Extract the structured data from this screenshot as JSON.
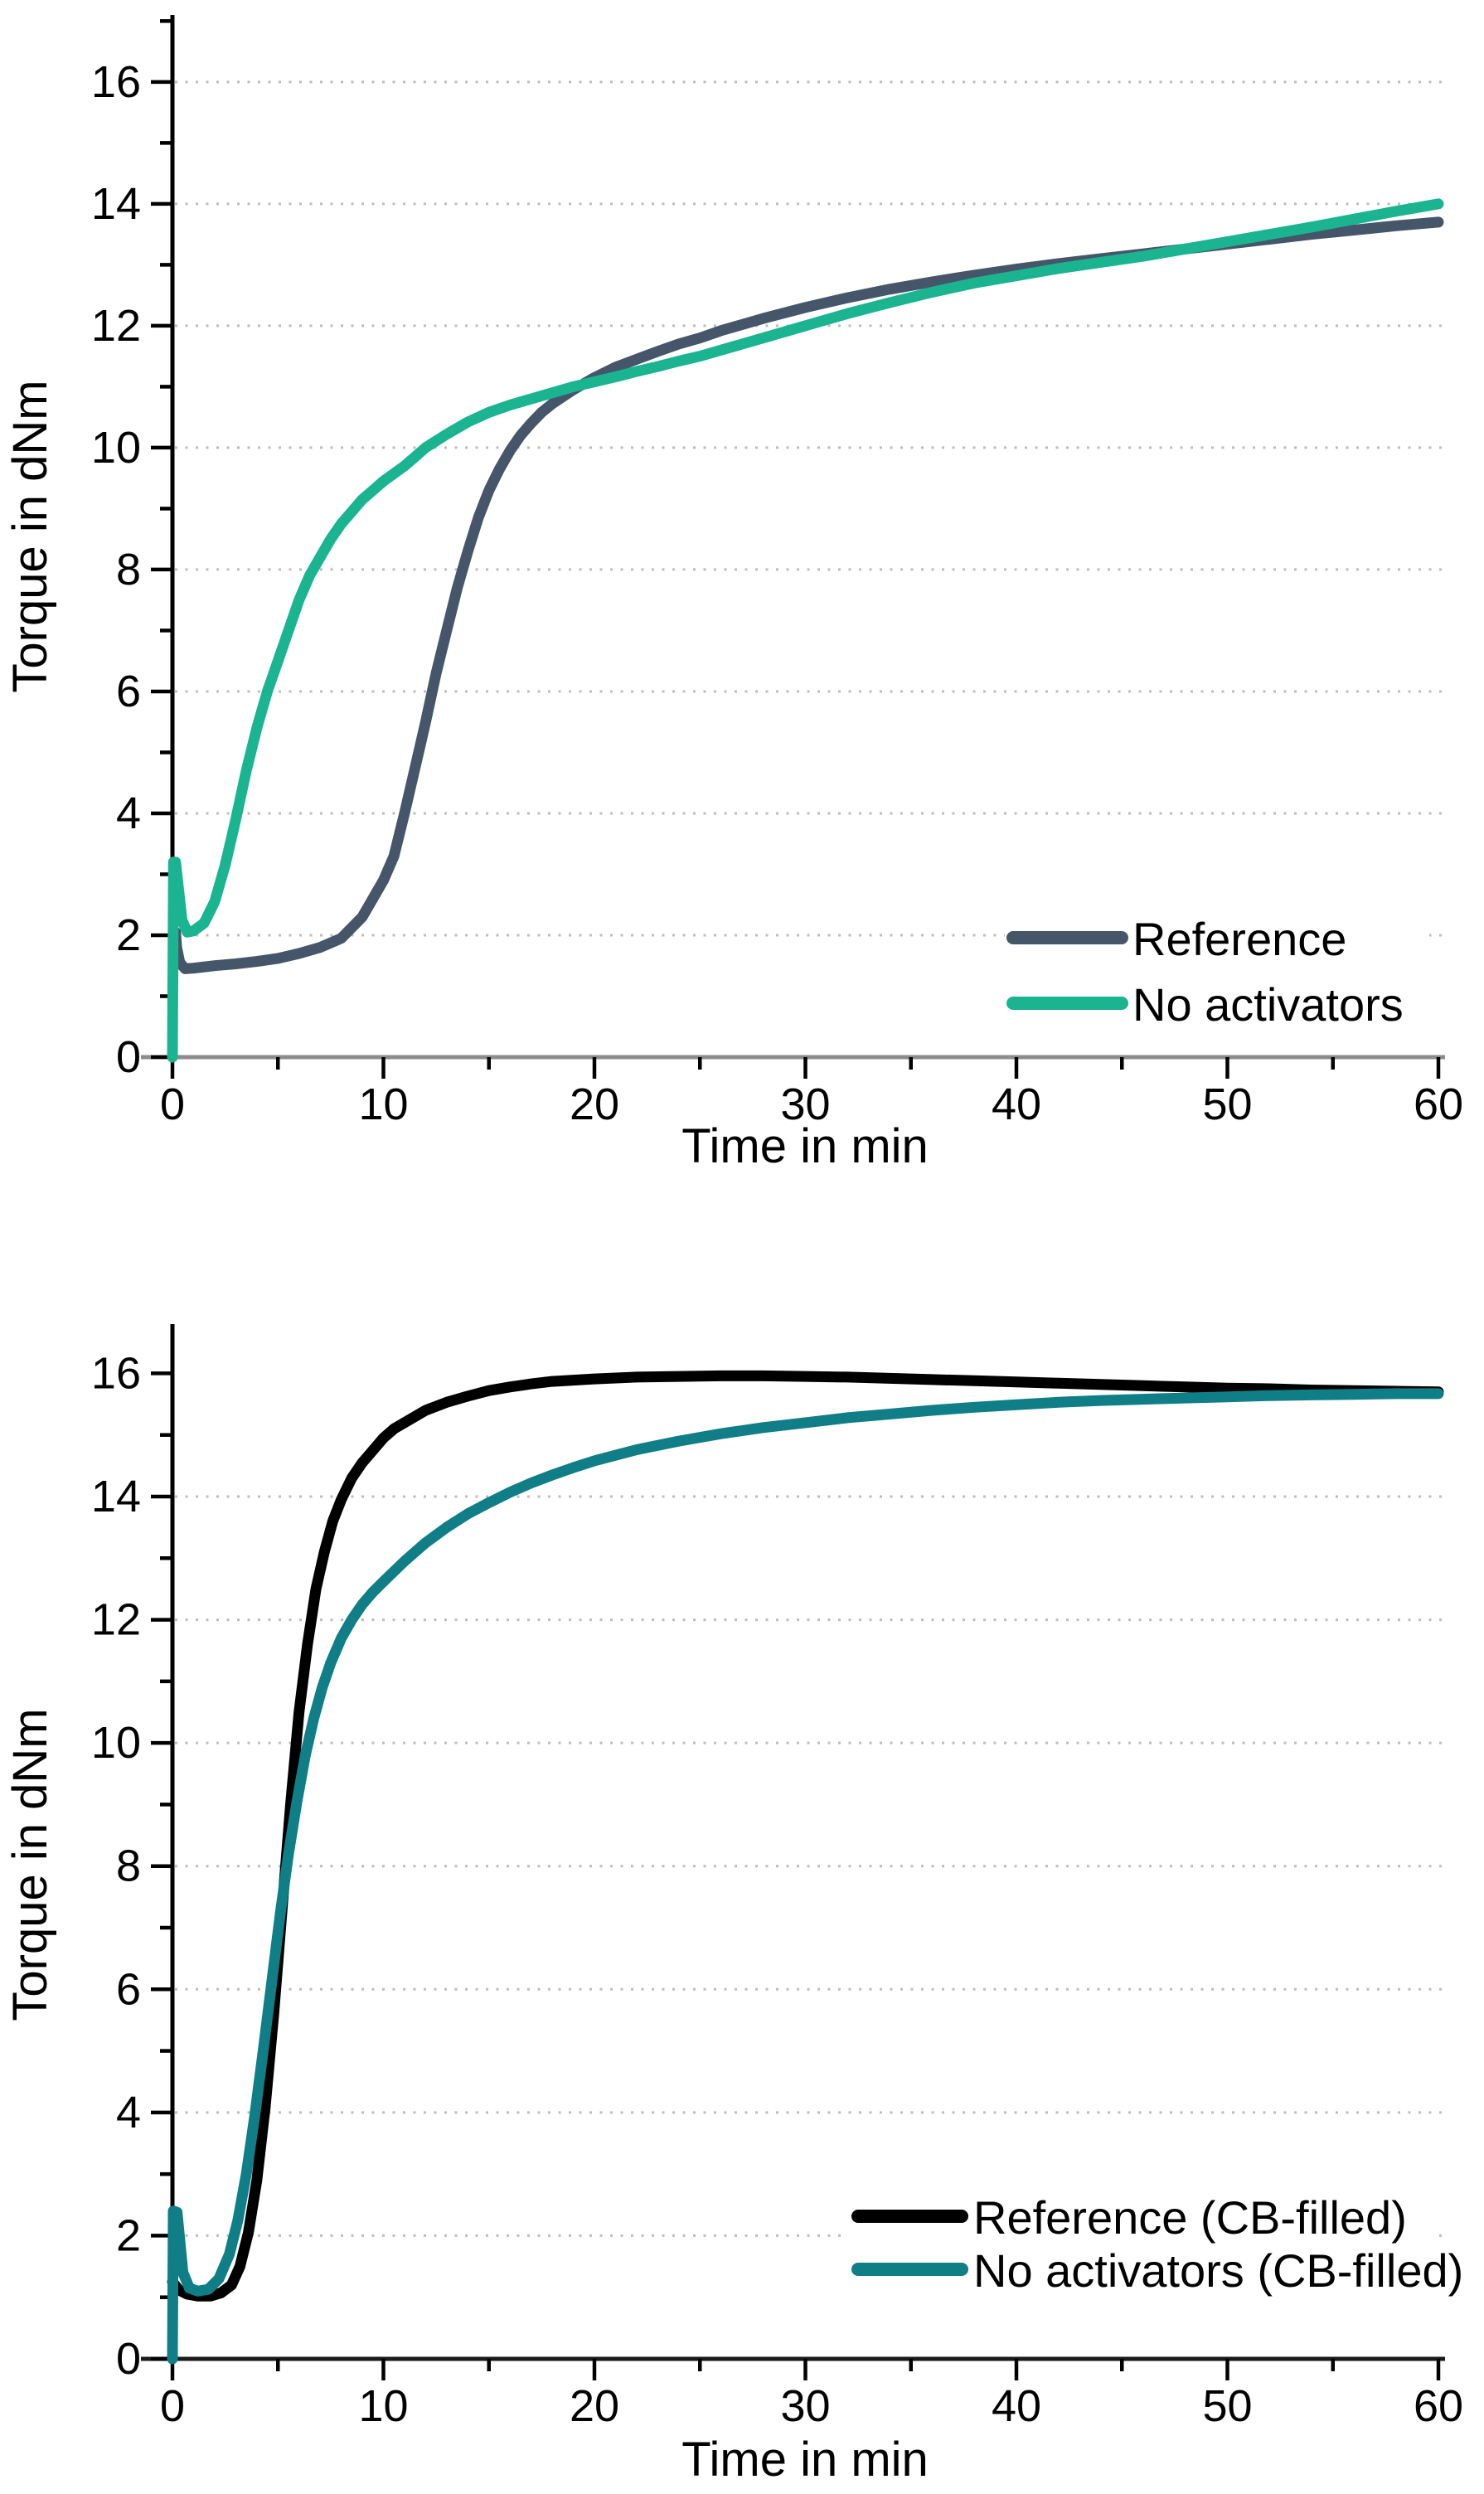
{
  "page": {
    "background": "#ffffff"
  },
  "chart_data": [
    {
      "type": "line",
      "title": "",
      "xlabel": "Time in min",
      "ylabel": "Torque in dNm",
      "xlim": [
        0,
        60
      ],
      "ylim": [
        0,
        17.1
      ],
      "xticks": [
        0,
        10,
        20,
        30,
        40,
        50,
        60
      ],
      "x_minor_ticks": [
        5,
        15,
        25,
        35,
        45,
        55
      ],
      "yticks": [
        0,
        2,
        4,
        6,
        8,
        10,
        12,
        14,
        16
      ],
      "y_minor_ticks": [
        1,
        3,
        5,
        7,
        9,
        11,
        13,
        15,
        17
      ],
      "gridlines": [
        2,
        4,
        6,
        8,
        10,
        12,
        14,
        16
      ],
      "grid_style": "dotted",
      "grid_color": "#bdbdbd",
      "axis_color_x": "#8c8c8c",
      "axis_color_y": "#000000",
      "legend_position": "lower-right",
      "series": [
        {
          "name": "Reference",
          "color": "#46566a",
          "points": [
            [
              0.15,
              2.05
            ],
            [
              0.2,
              1.8
            ],
            [
              0.35,
              1.55
            ],
            [
              0.6,
              1.45
            ],
            [
              1,
              1.46
            ],
            [
              2,
              1.5
            ],
            [
              3,
              1.53
            ],
            [
              4,
              1.57
            ],
            [
              5,
              1.62
            ],
            [
              6,
              1.7
            ],
            [
              7,
              1.8
            ],
            [
              8,
              1.95
            ],
            [
              9,
              2.3
            ],
            [
              10,
              2.9
            ],
            [
              10.5,
              3.3
            ],
            [
              11,
              4.0
            ],
            [
              11.5,
              4.75
            ],
            [
              12,
              5.5
            ],
            [
              12.5,
              6.3
            ],
            [
              13,
              7.0
            ],
            [
              13.5,
              7.7
            ],
            [
              14,
              8.3
            ],
            [
              14.5,
              8.85
            ],
            [
              15,
              9.3
            ],
            [
              15.5,
              9.65
            ],
            [
              16,
              9.95
            ],
            [
              16.5,
              10.2
            ],
            [
              17,
              10.4
            ],
            [
              17.5,
              10.58
            ],
            [
              18,
              10.72
            ],
            [
              19,
              10.95
            ],
            [
              20,
              11.15
            ],
            [
              21,
              11.32
            ],
            [
              22,
              11.45
            ],
            [
              23,
              11.58
            ],
            [
              24,
              11.7
            ],
            [
              25,
              11.8
            ],
            [
              26,
              11.92
            ],
            [
              28,
              12.12
            ],
            [
              30,
              12.3
            ],
            [
              32,
              12.46
            ],
            [
              34,
              12.6
            ],
            [
              36,
              12.72
            ],
            [
              38,
              12.83
            ],
            [
              40,
              12.93
            ],
            [
              42,
              13.02
            ],
            [
              44,
              13.1
            ],
            [
              46,
              13.18
            ],
            [
              48,
              13.26
            ],
            [
              50,
              13.34
            ],
            [
              52,
              13.42
            ],
            [
              54,
              13.5
            ],
            [
              56,
              13.57
            ],
            [
              58,
              13.64
            ],
            [
              60,
              13.7
            ]
          ]
        },
        {
          "name": "No activators",
          "color": "#1bb491",
          "points": [
            [
              0,
              0
            ],
            [
              0.05,
              3.2
            ],
            [
              0.15,
              3.2
            ],
            [
              0.45,
              2.25
            ],
            [
              0.7,
              2.05
            ],
            [
              1,
              2.07
            ],
            [
              1.5,
              2.2
            ],
            [
              2,
              2.55
            ],
            [
              2.5,
              3.15
            ],
            [
              3,
              3.9
            ],
            [
              3.5,
              4.7
            ],
            [
              4,
              5.4
            ],
            [
              4.5,
              6.0
            ],
            [
              5,
              6.5
            ],
            [
              5.5,
              7.0
            ],
            [
              6,
              7.5
            ],
            [
              6.5,
              7.9
            ],
            [
              7,
              8.2
            ],
            [
              7.5,
              8.5
            ],
            [
              8,
              8.75
            ],
            [
              8.5,
              8.95
            ],
            [
              9,
              9.15
            ],
            [
              9.5,
              9.3
            ],
            [
              10,
              9.45
            ],
            [
              11,
              9.7
            ],
            [
              12,
              10.0
            ],
            [
              13,
              10.22
            ],
            [
              14,
              10.42
            ],
            [
              15,
              10.58
            ],
            [
              16,
              10.7
            ],
            [
              17,
              10.8
            ],
            [
              18,
              10.9
            ],
            [
              19,
              11.0
            ],
            [
              20,
              11.08
            ],
            [
              21,
              11.16
            ],
            [
              22,
              11.25
            ],
            [
              23,
              11.33
            ],
            [
              24,
              11.42
            ],
            [
              25,
              11.5
            ],
            [
              26,
              11.6
            ],
            [
              28,
              11.8
            ],
            [
              30,
              12.0
            ],
            [
              32,
              12.2
            ],
            [
              34,
              12.38
            ],
            [
              36,
              12.55
            ],
            [
              38,
              12.7
            ],
            [
              40,
              12.82
            ],
            [
              42,
              12.94
            ],
            [
              44,
              13.04
            ],
            [
              46,
              13.14
            ],
            [
              48,
              13.26
            ],
            [
              50,
              13.38
            ],
            [
              52,
              13.5
            ],
            [
              54,
              13.62
            ],
            [
              56,
              13.75
            ],
            [
              58,
              13.88
            ],
            [
              60,
              14.0
            ]
          ]
        }
      ]
    },
    {
      "type": "line",
      "title": "",
      "xlabel": "Time in min",
      "ylabel": "Torque in dNm",
      "xlim": [
        0,
        60
      ],
      "ylim": [
        0,
        16.8
      ],
      "xticks": [
        0,
        10,
        20,
        30,
        40,
        50,
        60
      ],
      "x_minor_ticks": [
        5,
        15,
        25,
        35,
        45,
        55
      ],
      "yticks": [
        0,
        2,
        4,
        6,
        8,
        10,
        12,
        14,
        16
      ],
      "y_minor_ticks": [
        1,
        3,
        5,
        7,
        9,
        11,
        13,
        15
      ],
      "gridlines": [
        2,
        4,
        6,
        8,
        10,
        12,
        14
      ],
      "grid_style": "dotted",
      "grid_color": "#bdbdbd",
      "axis_color_x": "#1a1a1a",
      "axis_color_y": "#000000",
      "legend_position": "lower-right",
      "series": [
        {
          "name": "Reference (CB-filled)",
          "color": "#000000",
          "points": [
            [
              0,
              1.25
            ],
            [
              0.3,
              1.12
            ],
            [
              0.7,
              1.05
            ],
            [
              1.2,
              1.02
            ],
            [
              1.8,
              1.02
            ],
            [
              2.3,
              1.07
            ],
            [
              2.8,
              1.2
            ],
            [
              3.2,
              1.5
            ],
            [
              3.6,
              2.05
            ],
            [
              4,
              2.9
            ],
            [
              4.4,
              4.1
            ],
            [
              4.8,
              5.6
            ],
            [
              5.2,
              7.3
            ],
            [
              5.6,
              9.0
            ],
            [
              6,
              10.5
            ],
            [
              6.4,
              11.6
            ],
            [
              6.8,
              12.5
            ],
            [
              7.2,
              13.1
            ],
            [
              7.6,
              13.6
            ],
            [
              8,
              13.95
            ],
            [
              8.5,
              14.3
            ],
            [
              9,
              14.55
            ],
            [
              9.5,
              14.75
            ],
            [
              10,
              14.95
            ],
            [
              10.5,
              15.1
            ],
            [
              11,
              15.2
            ],
            [
              12,
              15.4
            ],
            [
              13,
              15.53
            ],
            [
              14,
              15.63
            ],
            [
              15,
              15.72
            ],
            [
              16,
              15.78
            ],
            [
              17,
              15.83
            ],
            [
              18,
              15.87
            ],
            [
              19,
              15.89
            ],
            [
              20,
              15.91
            ],
            [
              22,
              15.94
            ],
            [
              24,
              15.95
            ],
            [
              26,
              15.96
            ],
            [
              28,
              15.96
            ],
            [
              30,
              15.95
            ],
            [
              32,
              15.94
            ],
            [
              34,
              15.92
            ],
            [
              36,
              15.9
            ],
            [
              38,
              15.88
            ],
            [
              40,
              15.86
            ],
            [
              42,
              15.84
            ],
            [
              44,
              15.82
            ],
            [
              46,
              15.8
            ],
            [
              48,
              15.78
            ],
            [
              50,
              15.76
            ],
            [
              52,
              15.75
            ],
            [
              54,
              15.73
            ],
            [
              56,
              15.72
            ],
            [
              58,
              15.71
            ],
            [
              60,
              15.7
            ]
          ]
        },
        {
          "name": "No activators (CB-filled)",
          "color": "#107e87",
          "points": [
            [
              0,
              0
            ],
            [
              0.04,
              2.4
            ],
            [
              0.22,
              2.38
            ],
            [
              0.5,
              1.4
            ],
            [
              0.8,
              1.15
            ],
            [
              1.2,
              1.1
            ],
            [
              1.7,
              1.13
            ],
            [
              2.2,
              1.3
            ],
            [
              2.7,
              1.7
            ],
            [
              3.1,
              2.25
            ],
            [
              3.5,
              3.0
            ],
            [
              3.9,
              3.95
            ],
            [
              4.3,
              5.0
            ],
            [
              4.7,
              6.1
            ],
            [
              5.1,
              7.2
            ],
            [
              5.5,
              8.2
            ],
            [
              5.9,
              9.05
            ],
            [
              6.3,
              9.8
            ],
            [
              6.7,
              10.4
            ],
            [
              7.1,
              10.9
            ],
            [
              7.5,
              11.3
            ],
            [
              8,
              11.7
            ],
            [
              8.5,
              12.0
            ],
            [
              9,
              12.25
            ],
            [
              9.5,
              12.45
            ],
            [
              10,
              12.62
            ],
            [
              11,
              12.95
            ],
            [
              12,
              13.25
            ],
            [
              13,
              13.5
            ],
            [
              14,
              13.72
            ],
            [
              15,
              13.9
            ],
            [
              16,
              14.07
            ],
            [
              17,
              14.22
            ],
            [
              18,
              14.35
            ],
            [
              19,
              14.47
            ],
            [
              20,
              14.58
            ],
            [
              21,
              14.67
            ],
            [
              22,
              14.76
            ],
            [
              24,
              14.9
            ],
            [
              26,
              15.02
            ],
            [
              28,
              15.12
            ],
            [
              30,
              15.2
            ],
            [
              32,
              15.28
            ],
            [
              34,
              15.34
            ],
            [
              36,
              15.4
            ],
            [
              38,
              15.45
            ],
            [
              40,
              15.49
            ],
            [
              42,
              15.53
            ],
            [
              44,
              15.56
            ],
            [
              46,
              15.58
            ],
            [
              48,
              15.6
            ],
            [
              50,
              15.62
            ],
            [
              52,
              15.64
            ],
            [
              54,
              15.65
            ],
            [
              56,
              15.66
            ],
            [
              58,
              15.67
            ],
            [
              60,
              15.67
            ]
          ]
        }
      ]
    }
  ]
}
